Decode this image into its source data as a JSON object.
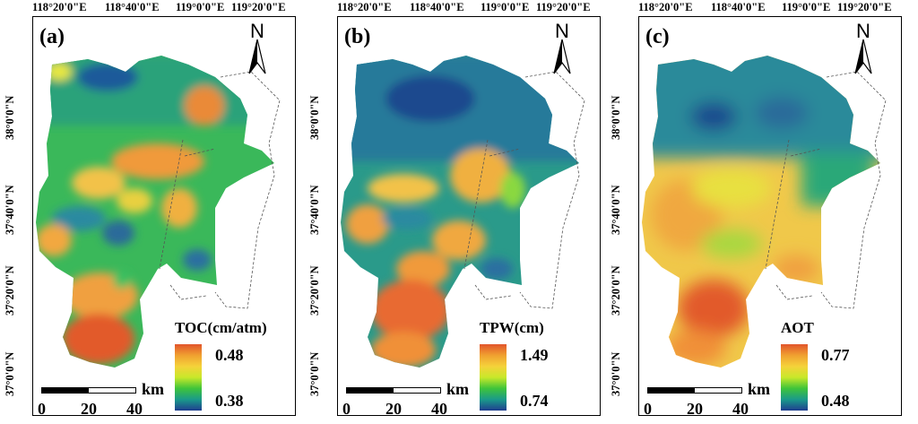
{
  "longitude_labels": [
    "118°20'0\"E",
    "118°40'0\"E",
    "119°0'0\"E",
    "119°20'0\"E"
  ],
  "latitude_labels": [
    "38°0'0\"N",
    "37°40'0\"N",
    "37°20'0\"N",
    "37°0'0\"N"
  ],
  "north_arrow": {
    "letter": "N",
    "icon": "north-arrow-icon"
  },
  "scale_bar": {
    "unit": "km",
    "ticks": [
      "0",
      "20",
      "40"
    ]
  },
  "panels": [
    {
      "label": "(a)",
      "legend": {
        "title": "TOC(cm/atm)",
        "max": "0.48",
        "min": "0.38",
        "ramp": [
          "#1f3d8f",
          "#1a9a8a",
          "#3ec43a",
          "#c8e82a",
          "#f5d23a",
          "#f0a030",
          "#e2552b"
        ]
      }
    },
    {
      "label": "(b)",
      "legend": {
        "title": "TPW(cm)",
        "max": "1.49",
        "min": "0.74",
        "ramp": [
          "#1f3d8f",
          "#1a9a8a",
          "#3ec43a",
          "#c8e82a",
          "#f5d23a",
          "#f0a030",
          "#e2552b"
        ]
      }
    },
    {
      "label": "(c)",
      "legend": {
        "title": "AOT",
        "max": "0.77",
        "min": "0.48",
        "ramp": [
          "#1f3d8f",
          "#1a9a8a",
          "#3ec43a",
          "#c8e82a",
          "#f5d23a",
          "#f0a030",
          "#e2552b"
        ]
      }
    }
  ]
}
